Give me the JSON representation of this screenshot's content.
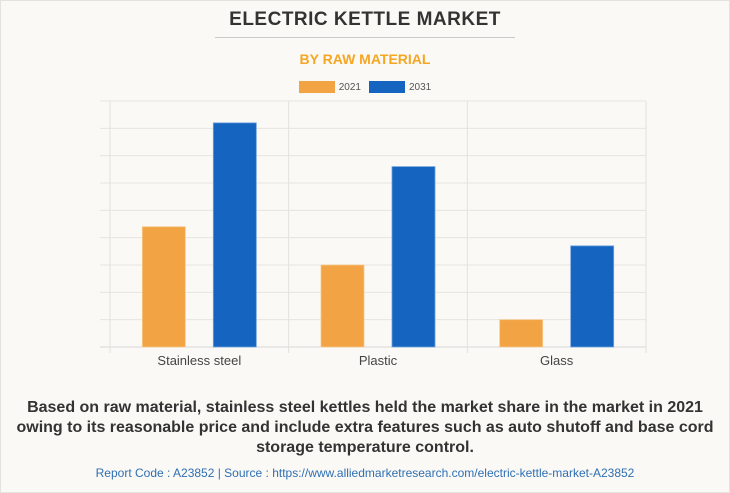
{
  "chart_data": {
    "type": "bar",
    "title": "ELECTRIC KETTLE MARKET",
    "subtitle": "BY RAW MATERIAL",
    "categories": [
      "Stainless steel",
      "Plastic",
      "Glass"
    ],
    "series": [
      {
        "name": "2021",
        "color": "#f2a444",
        "values": [
          4.4,
          3.0,
          1.0
        ]
      },
      {
        "name": "2031",
        "color": "#1565c0",
        "values": [
          8.2,
          6.6,
          3.7
        ]
      }
    ],
    "xlabel": "",
    "ylabel": "",
    "ylim": [
      0,
      9
    ],
    "y_gridlines": 9,
    "y_tick_labels_shown": false,
    "grid": true,
    "legend": "top-center"
  },
  "description": "Based on raw material, stainless steel kettles held the market share in the market in 2021 owing to its reasonable price and include extra features such as auto shutoff and base cord storage temperature control.",
  "footer": "Report Code : A23852  |  Source : https://www.alliedmarketresearch.com/electric-kettle-market-A23852"
}
